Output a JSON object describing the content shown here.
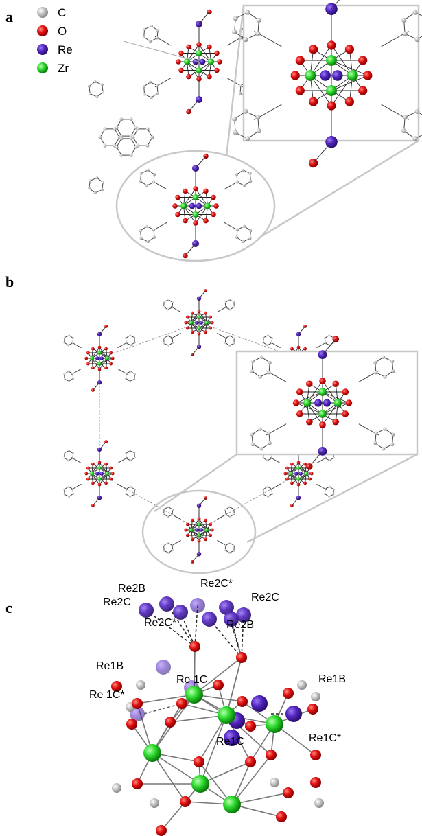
{
  "panels": [
    {
      "label": "a"
    },
    {
      "label": "b"
    },
    {
      "label": "c"
    }
  ],
  "legend": [
    {
      "label": "C"
    },
    {
      "label": "O"
    },
    {
      "label": "Re"
    },
    {
      "label": "Zr"
    }
  ],
  "atom_labels": [
    "Re2B",
    "Re2C*",
    "Re2C",
    "Re2C",
    "Re2C*",
    "Re2B",
    "Re1B",
    "Re 1C",
    "Re1B",
    "Re 1C*",
    "Re1C*",
    "Re1C"
  ]
}
